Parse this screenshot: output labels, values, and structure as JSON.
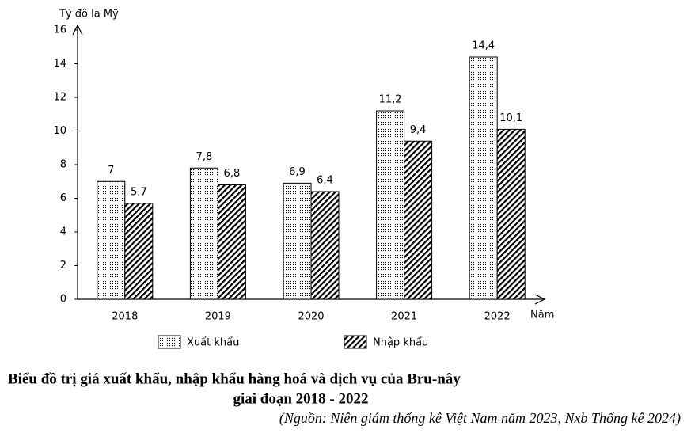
{
  "chart_data": {
    "type": "bar",
    "title": "Biểu đồ trị giá xuất khẩu, nhập khẩu hàng hoá và dịch vụ của Bru-nây",
    "subtitle": "giai đoạn 2018 - 2022",
    "source": "(Nguồn: Niên giám thống kê Việt Nam năm 2023, Nxb Thống kê 2024)",
    "y_label": "Tỷ đô la Mỹ",
    "x_label": "Năm",
    "categories": [
      "2018",
      "2019",
      "2020",
      "2021",
      "2022"
    ],
    "series": [
      {
        "name": "Xuất khẩu",
        "color": "#000000",
        "pattern": "dots",
        "values": [
          7,
          7.8,
          6.9,
          11.2,
          14.4
        ],
        "value_labels": [
          "7",
          "7,8",
          "6,9",
          "11,2",
          "14,4"
        ]
      },
      {
        "name": "Nhập khẩu",
        "color": "#000000",
        "pattern": "hatch",
        "values": [
          5.7,
          6.8,
          6.4,
          9.4,
          10.1
        ],
        "value_labels": [
          "5,7",
          "6,8",
          "6,4",
          "9,4",
          "10,1"
        ]
      }
    ],
    "ylim": [
      0,
      16
    ],
    "yticks": [
      0,
      2,
      4,
      6,
      8,
      10,
      12,
      14,
      16
    ],
    "grid": false
  }
}
